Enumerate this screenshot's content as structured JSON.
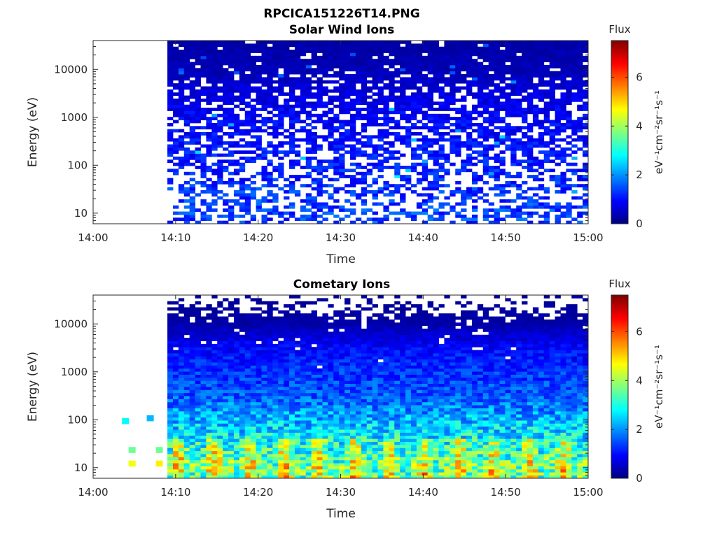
{
  "figure": {
    "filename": "RPCICA151226T14.PNG"
  },
  "chart_data": [
    {
      "type": "heatmap",
      "title": "Solar Wind Ions",
      "xlabel": "Time",
      "ylabel": "Energy (eV)",
      "y_scale": "log",
      "xlim": [
        "14:00",
        "15:00"
      ],
      "x_ticks": [
        "14:00",
        "14:10",
        "14:20",
        "14:30",
        "14:40",
        "14:50",
        "15:00"
      ],
      "y_ticks": [
        10,
        100,
        1000,
        10000
      ],
      "ylim": [
        6,
        40000
      ],
      "data_start": "14:09",
      "colorbar": {
        "title": "Flux",
        "label": "eV⁻¹cm⁻²sr⁻¹s⁻¹",
        "range": [
          0,
          7.5
        ],
        "ticks": [
          0,
          2,
          4,
          6
        ],
        "colormap": "jet"
      },
      "profile": [
        {
          "energy": 30000,
          "flux": 0.3,
          "coverage": 0.95
        },
        {
          "energy": 10000,
          "flux": 0.4,
          "coverage": 0.93
        },
        {
          "energy": 3000,
          "flux": 0.7,
          "coverage": 0.75
        },
        {
          "energy": 1000,
          "flux": 0.9,
          "coverage": 0.7
        },
        {
          "energy": 300,
          "flux": 1.0,
          "coverage": 0.6
        },
        {
          "energy": 100,
          "flux": 1.1,
          "coverage": 0.5
        },
        {
          "energy": 30,
          "flux": 1.3,
          "coverage": 0.45
        },
        {
          "energy": 10,
          "flux": 1.4,
          "coverage": 0.5
        }
      ],
      "pre_data_points": []
    },
    {
      "type": "heatmap",
      "title": "Cometary Ions",
      "xlabel": "Time",
      "ylabel": "Energy (eV)",
      "y_scale": "log",
      "xlim": [
        "14:00",
        "15:00"
      ],
      "x_ticks": [
        "14:00",
        "14:10",
        "14:20",
        "14:30",
        "14:40",
        "14:50",
        "15:00"
      ],
      "y_ticks": [
        10,
        100,
        1000,
        10000
      ],
      "ylim": [
        6,
        40000
      ],
      "data_start": "14:09",
      "colorbar": {
        "title": "Flux",
        "label": "eV⁻¹cm⁻²sr⁻¹s⁻¹",
        "range": [
          0,
          7.5
        ],
        "ticks": [
          0,
          2,
          4,
          6
        ],
        "colormap": "jet"
      },
      "profile": [
        {
          "energy": 30000,
          "flux": 0.2,
          "coverage": 0.2
        },
        {
          "energy": 10000,
          "flux": 0.3,
          "coverage": 0.97
        },
        {
          "energy": 3000,
          "flux": 1.0,
          "coverage": 0.97
        },
        {
          "energy": 1000,
          "flux": 1.3,
          "coverage": 1.0
        },
        {
          "energy": 300,
          "flux": 1.6,
          "coverage": 1.0
        },
        {
          "energy": 100,
          "flux": 2.3,
          "coverage": 1.0
        },
        {
          "energy": 30,
          "flux": 3.0,
          "coverage": 1.0
        },
        {
          "energy": 10,
          "flux": 3.6,
          "coverage": 1.0
        }
      ],
      "pre_data_points": [
        {
          "time": "14:03.5",
          "energy": 100,
          "flux": 2.8
        },
        {
          "time": "14:06.5",
          "energy": 115,
          "flux": 2.3
        },
        {
          "time": "14:04.3",
          "energy": 25,
          "flux": 3.6
        },
        {
          "time": "14:04.3",
          "energy": 13,
          "flux": 4.6
        },
        {
          "time": "14:07.6",
          "energy": 25,
          "flux": 3.6
        },
        {
          "time": "14:07.6",
          "energy": 13,
          "flux": 4.8
        }
      ]
    }
  ]
}
